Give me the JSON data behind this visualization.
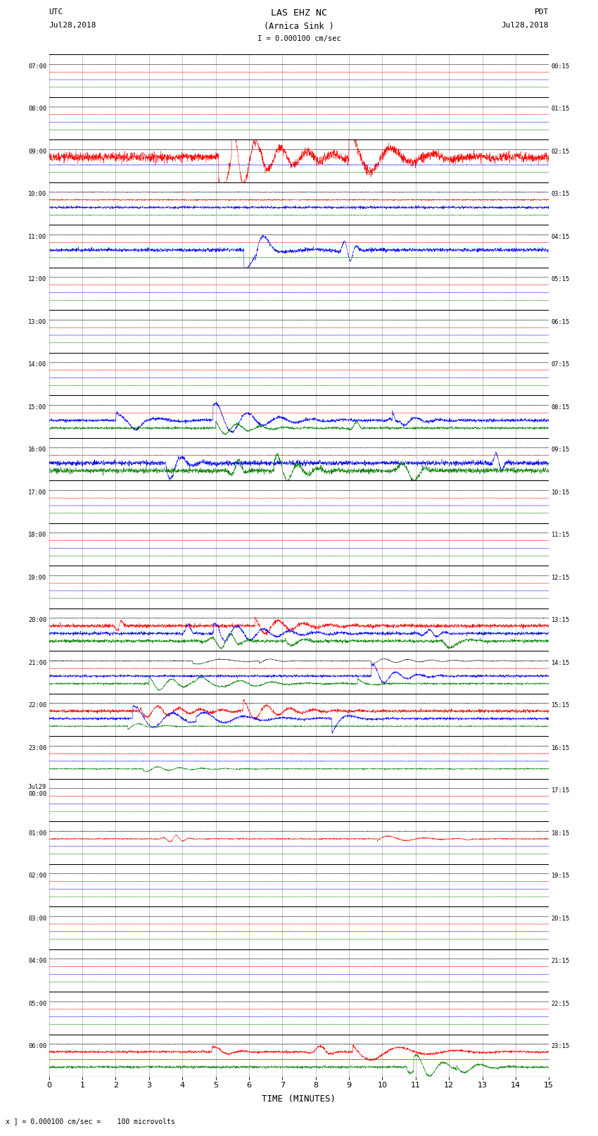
{
  "title_line1": "LAS EHZ NC",
  "title_line2": "(Arnica Sink )",
  "title_line3": "I = 0.000100 cm/sec",
  "label_utc": "UTC",
  "label_utc_date": "Jul28,2018",
  "label_pdt": "PDT",
  "label_pdt_date": "Jul28,2018",
  "xlabel": "TIME (MINUTES)",
  "footnote": "x ] = 0.000100 cm/sec =    100 microvolts",
  "left_labels": [
    "07:00",
    "08:00",
    "09:00",
    "10:00",
    "11:00",
    "12:00",
    "13:00",
    "14:00",
    "15:00",
    "16:00",
    "17:00",
    "18:00",
    "19:00",
    "20:00",
    "21:00",
    "22:00",
    "23:00",
    "Jul29\n00:00",
    "01:00",
    "02:00",
    "03:00",
    "04:00",
    "05:00",
    "06:00"
  ],
  "right_labels": [
    "00:15",
    "01:15",
    "02:15",
    "03:15",
    "04:15",
    "05:15",
    "06:15",
    "07:15",
    "08:15",
    "09:15",
    "10:15",
    "11:15",
    "12:15",
    "13:15",
    "14:15",
    "15:15",
    "16:15",
    "17:15",
    "18:15",
    "19:15",
    "20:15",
    "21:15",
    "22:15",
    "23:15"
  ],
  "bg_color": "#ffffff",
  "grid_color": "#999999",
  "sep_color": "#000000",
  "figwidth": 8.5,
  "figheight": 16.13,
  "dpi": 100,
  "num_rows": 24,
  "minutes_per_row": 15,
  "xmin": 0,
  "xmax": 15,
  "traces_per_row": 4,
  "row_activity": [
    [
      0.003,
      0.003,
      0.002,
      0.002,
      false,
      false,
      false,
      false
    ],
    [
      0.003,
      0.002,
      0.002,
      0.002,
      false,
      false,
      false,
      false
    ],
    [
      0.005,
      0.15,
      0.008,
      0.004,
      false,
      true,
      false,
      false
    ],
    [
      0.008,
      0.02,
      0.04,
      0.008,
      false,
      false,
      false,
      false
    ],
    [
      0.004,
      0.005,
      0.06,
      0.008,
      false,
      false,
      true,
      false
    ],
    [
      0.003,
      0.003,
      0.002,
      0.002,
      false,
      false,
      false,
      false
    ],
    [
      0.003,
      0.003,
      0.002,
      0.002,
      false,
      false,
      false,
      false
    ],
    [
      0.004,
      0.003,
      0.003,
      0.003,
      false,
      false,
      false,
      false
    ],
    [
      0.004,
      0.003,
      0.05,
      0.04,
      false,
      false,
      true,
      true
    ],
    [
      0.005,
      0.008,
      0.08,
      0.08,
      false,
      false,
      true,
      true
    ],
    [
      0.004,
      0.003,
      0.003,
      0.003,
      false,
      false,
      false,
      false
    ],
    [
      0.003,
      0.003,
      0.002,
      0.002,
      false,
      false,
      false,
      false
    ],
    [
      0.003,
      0.003,
      0.002,
      0.002,
      false,
      false,
      false,
      false
    ],
    [
      0.006,
      0.06,
      0.05,
      0.05,
      false,
      true,
      true,
      true
    ],
    [
      0.01,
      0.008,
      0.04,
      0.03,
      true,
      false,
      true,
      true
    ],
    [
      0.006,
      0.05,
      0.04,
      0.02,
      false,
      true,
      true,
      true
    ],
    [
      0.005,
      0.008,
      0.006,
      0.02,
      false,
      false,
      false,
      true
    ],
    [
      0.003,
      0.003,
      0.002,
      0.002,
      false,
      false,
      false,
      false
    ],
    [
      0.006,
      0.02,
      0.003,
      0.002,
      false,
      true,
      false,
      false
    ],
    [
      0.003,
      0.003,
      0.002,
      0.002,
      false,
      false,
      false,
      false
    ],
    [
      0.003,
      0.003,
      0.003,
      0.002,
      false,
      false,
      false,
      false
    ],
    [
      0.003,
      0.005,
      0.003,
      0.002,
      false,
      false,
      false,
      false
    ],
    [
      0.003,
      0.003,
      0.002,
      0.002,
      false,
      false,
      false,
      false
    ],
    [
      0.005,
      0.04,
      0.006,
      0.04,
      false,
      true,
      false,
      true
    ]
  ]
}
